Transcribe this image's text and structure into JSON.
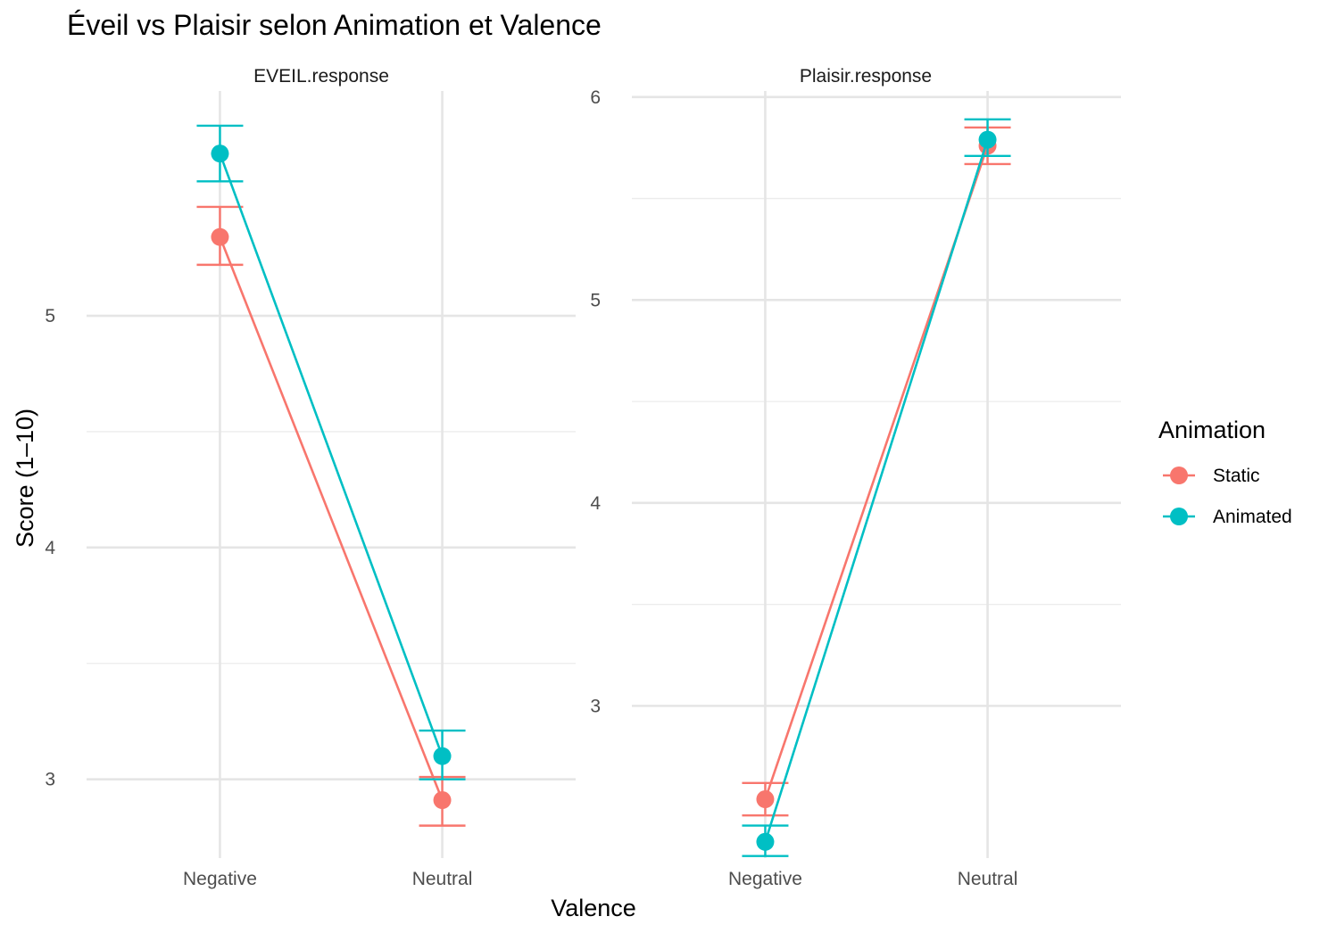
{
  "chart_data": {
    "type": "line",
    "title": "Éveil vs Plaisir selon Animation et Valence",
    "xlabel": "Valence",
    "ylabel": "Score (1–10)",
    "legend": {
      "title": "Animation",
      "position": "right",
      "entries": [
        "Static",
        "Animated"
      ]
    },
    "colors": {
      "Static": "#F8766D",
      "Animated": "#00BFC4"
    },
    "grid": true,
    "panels": [
      {
        "name": "EVEIL.response",
        "categories": [
          "Negative",
          "Neutral"
        ],
        "ylim": [
          2.66,
          5.97
        ],
        "yticks": [
          3,
          4,
          5
        ],
        "series": [
          {
            "name": "Static",
            "values": [
              5.34,
              2.91
            ],
            "lower": [
              5.22,
              2.8
            ],
            "upper": [
              5.47,
              3.01
            ]
          },
          {
            "name": "Animated",
            "values": [
              5.7,
              3.1
            ],
            "lower": [
              5.58,
              3.0
            ],
            "upper": [
              5.82,
              3.21
            ]
          }
        ]
      },
      {
        "name": "Plaisir.response",
        "categories": [
          "Negative",
          "Neutral"
        ],
        "ylim": [
          2.25,
          6.03
        ],
        "yticks": [
          3,
          4,
          5,
          6
        ],
        "series": [
          {
            "name": "Static",
            "values": [
              2.54,
              5.76
            ],
            "lower": [
              2.46,
              5.67
            ],
            "upper": [
              2.62,
              5.85
            ]
          },
          {
            "name": "Animated",
            "values": [
              2.33,
              5.79
            ],
            "lower": [
              2.26,
              5.71
            ],
            "upper": [
              2.41,
              5.89
            ]
          }
        ]
      }
    ]
  }
}
